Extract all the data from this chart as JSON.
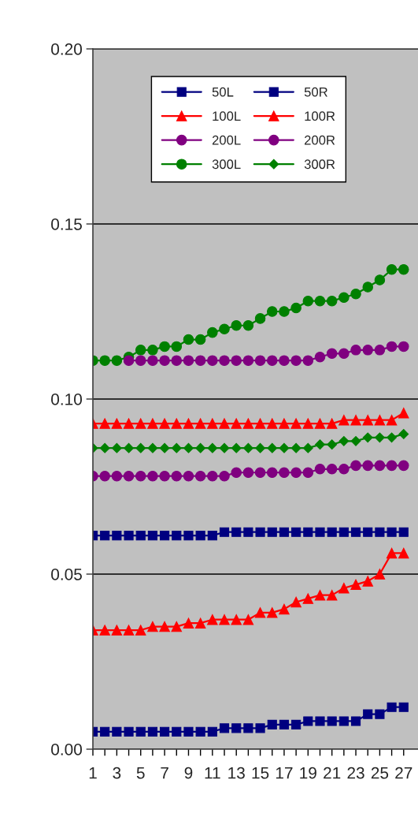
{
  "chart_data": {
    "type": "line",
    "categories": [
      "1",
      null,
      "3",
      null,
      "5",
      null,
      "7",
      null,
      "9",
      null,
      "11",
      null,
      "13",
      null,
      "15",
      null,
      "17",
      null,
      "19",
      null,
      "21",
      null,
      "23",
      null,
      "25",
      null,
      "27"
    ],
    "series": [
      {
        "name": "50L",
        "color": "#000080",
        "marker": "square",
        "values": [
          0.005,
          0.005,
          0.005,
          0.005,
          0.005,
          0.005,
          0.005,
          0.005,
          0.005,
          0.005,
          0.005,
          0.006,
          0.006,
          0.006,
          0.006,
          0.007,
          0.007,
          0.007,
          0.008,
          0.008,
          0.008,
          0.008,
          0.008,
          0.01,
          0.01,
          0.012,
          0.012
        ]
      },
      {
        "name": "50R",
        "color": "#000080",
        "marker": "square",
        "values": [
          0.061,
          0.061,
          0.061,
          0.061,
          0.061,
          0.061,
          0.061,
          0.061,
          0.061,
          0.061,
          0.061,
          0.062,
          0.062,
          0.062,
          0.062,
          0.062,
          0.062,
          0.062,
          0.062,
          0.062,
          0.062,
          0.062,
          0.062,
          0.062,
          0.062,
          0.062,
          0.062
        ]
      },
      {
        "name": "100L",
        "color": "#ff0000",
        "marker": "triangle",
        "values": [
          0.034,
          0.034,
          0.034,
          0.034,
          0.034,
          0.035,
          0.035,
          0.035,
          0.036,
          0.036,
          0.037,
          0.037,
          0.037,
          0.037,
          0.039,
          0.039,
          0.04,
          0.042,
          0.043,
          0.044,
          0.044,
          0.046,
          0.047,
          0.048,
          0.05,
          0.056,
          0.056
        ]
      },
      {
        "name": "100R",
        "color": "#ff0000",
        "marker": "triangle",
        "values": [
          0.093,
          0.093,
          0.093,
          0.093,
          0.093,
          0.093,
          0.093,
          0.093,
          0.093,
          0.093,
          0.093,
          0.093,
          0.093,
          0.093,
          0.093,
          0.093,
          0.093,
          0.093,
          0.093,
          0.093,
          0.093,
          0.094,
          0.094,
          0.094,
          0.094,
          0.094,
          0.096
        ]
      },
      {
        "name": "200L",
        "color": "#800080",
        "marker": "circle",
        "values": [
          0.078,
          0.078,
          0.078,
          0.078,
          0.078,
          0.078,
          0.078,
          0.078,
          0.078,
          0.078,
          0.078,
          0.078,
          0.079,
          0.079,
          0.079,
          0.079,
          0.079,
          0.079,
          0.079,
          0.08,
          0.08,
          0.08,
          0.081,
          0.081,
          0.081,
          0.081,
          0.081
        ]
      },
      {
        "name": "200R",
        "color": "#800080",
        "marker": "circle",
        "values": [
          null,
          null,
          null,
          0.111,
          0.111,
          0.111,
          0.111,
          0.111,
          0.111,
          0.111,
          0.111,
          0.111,
          0.111,
          0.111,
          0.111,
          0.111,
          0.111,
          0.111,
          0.111,
          0.112,
          0.113,
          0.113,
          0.114,
          0.114,
          0.114,
          0.115,
          0.115
        ]
      },
      {
        "name": "300L",
        "color": "#008000",
        "marker": "circle",
        "values": [
          0.111,
          0.111,
          0.111,
          0.112,
          0.114,
          0.114,
          0.115,
          0.115,
          0.117,
          0.117,
          0.119,
          0.12,
          0.121,
          0.121,
          0.123,
          0.125,
          0.125,
          0.126,
          0.128,
          0.128,
          0.128,
          0.129,
          0.13,
          0.132,
          0.134,
          0.137,
          0.137
        ]
      },
      {
        "name": "300R",
        "color": "#008000",
        "marker": "diamond",
        "values": [
          0.086,
          0.086,
          0.086,
          0.086,
          0.086,
          0.086,
          0.086,
          0.086,
          0.086,
          0.086,
          0.086,
          0.086,
          0.086,
          0.086,
          0.086,
          0.086,
          0.086,
          0.086,
          0.086,
          0.087,
          0.087,
          0.088,
          0.088,
          0.089,
          0.089,
          0.089,
          0.09
        ]
      }
    ],
    "ylim": [
      0,
      0.2
    ],
    "yticks": [
      {
        "value": 0,
        "label": "0.00"
      },
      {
        "value": 0.05,
        "label": "0.05"
      },
      {
        "value": 0.1,
        "label": "0.10"
      },
      {
        "value": 0.15,
        "label": "0.15"
      },
      {
        "value": 0.2,
        "label": "0.20"
      }
    ],
    "grid": "y",
    "legend": "top left",
    "line_style": "solid"
  }
}
